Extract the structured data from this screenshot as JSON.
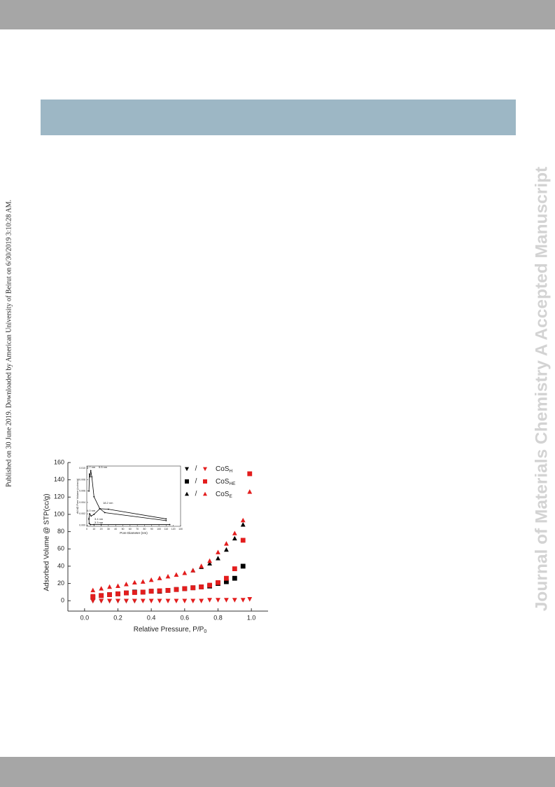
{
  "sidebar_text": "Published on 30 June 2019. Downloaded by American University of Beirut on 6/30/2019 3:10:28 AM.",
  "watermark": "Journal of Materials Chemistry A Accepted Manuscript",
  "chart_data": {
    "type": "scatter",
    "x_label": "Relative Pressure, P/P",
    "x_label_sub": "0",
    "y_label": "Adsorbed Volume @ STP(cc/g)",
    "xlim": [
      -0.1,
      1.1
    ],
    "xticks": [
      {
        "value": 0,
        "label": "0.0"
      },
      {
        "value": 0.2,
        "label": "0.2"
      },
      {
        "value": 0.4,
        "label": "0.4"
      },
      {
        "value": 0.6,
        "label": "0.6"
      },
      {
        "value": 0.8,
        "label": "0.8"
      },
      {
        "value": 1,
        "label": "1.0"
      }
    ],
    "ylim": [
      -12,
      160
    ],
    "yticks": [
      0,
      20,
      40,
      60,
      80,
      100,
      120,
      140,
      160
    ],
    "legend_separator": "/",
    "desorption_color": "#000000",
    "adsorption_color": "#e31d1d",
    "series": [
      {
        "name": "CoS",
        "name_sub": "H",
        "marker": "triangle-down",
        "desorption": {
          "x": [
            0.05,
            0.1,
            0.15,
            0.2,
            0.25,
            0.3
          ],
          "values": [
            0,
            0,
            0,
            0,
            0,
            0
          ]
        },
        "adsorption": {
          "x": [
            0.05,
            0.1,
            0.15,
            0.2,
            0.25,
            0.3,
            0.35,
            0.4,
            0.45,
            0.5,
            0.55,
            0.6,
            0.65,
            0.7,
            0.75,
            0.8,
            0.85,
            0.9,
            0.95,
            0.99
          ],
          "values": [
            0,
            0,
            0,
            0,
            0,
            0,
            0,
            0,
            0,
            0,
            0,
            0,
            0,
            0,
            1,
            1,
            1,
            1,
            1,
            2
          ]
        }
      },
      {
        "name": "CoS",
        "name_sub": "HE",
        "marker": "square",
        "desorption": {
          "x": [
            0.05,
            0.1,
            0.15,
            0.2,
            0.25,
            0.3,
            0.35,
            0.4,
            0.45,
            0.5,
            0.55,
            0.6,
            0.65,
            0.7,
            0.75,
            0.8,
            0.85,
            0.9,
            0.95
          ],
          "values": [
            4,
            6,
            7,
            8,
            9,
            10,
            10,
            11,
            11,
            12,
            13,
            14,
            15,
            16,
            17,
            20,
            22,
            26,
            40
          ]
        },
        "adsorption": {
          "x": [
            0.05,
            0.1,
            0.15,
            0.2,
            0.25,
            0.3,
            0.35,
            0.4,
            0.45,
            0.5,
            0.55,
            0.6,
            0.65,
            0.7,
            0.75,
            0.8,
            0.85,
            0.9,
            0.95,
            0.99
          ],
          "values": [
            5,
            6,
            7,
            8,
            9,
            9.5,
            10,
            11,
            11.5,
            12,
            13,
            14,
            15,
            16,
            18,
            21,
            26,
            37,
            70,
            147
          ]
        }
      },
      {
        "name": "CoS",
        "name_sub": "E",
        "marker": "triangle-up",
        "desorption": {
          "x": [
            0.65,
            0.7,
            0.75,
            0.8,
            0.85,
            0.9,
            0.95
          ],
          "values": [
            35,
            39,
            43,
            49,
            59,
            72,
            88
          ]
        },
        "adsorption": {
          "x": [
            0.05,
            0.1,
            0.15,
            0.2,
            0.25,
            0.3,
            0.35,
            0.4,
            0.45,
            0.5,
            0.55,
            0.6,
            0.65,
            0.7,
            0.75,
            0.8,
            0.85,
            0.9,
            0.95,
            0.99
          ],
          "values": [
            12,
            14,
            16,
            17,
            19,
            21,
            22,
            24,
            26,
            28,
            30,
            32,
            35,
            40,
            46,
            56,
            66,
            78,
            93,
            126
          ]
        }
      }
    ]
  },
  "inset": {
    "type": "line",
    "x_label": "Pore Diameter (nm)",
    "y_label": "dV/dD Pore Volume (cc/nm/g)",
    "xlim": [
      0,
      130
    ],
    "xticks": [
      0,
      10,
      20,
      30,
      40,
      50,
      60,
      70,
      80,
      90,
      100,
      110,
      120,
      130
    ],
    "ylim": [
      -0.0002,
      0.0104
    ],
    "yticks": [
      {
        "value": 0,
        "label": "0.000"
      },
      {
        "value": 0.002,
        "label": "0.002"
      },
      {
        "value": 0.004,
        "label": "0.004"
      },
      {
        "value": 0.006,
        "label": "0.006"
      },
      {
        "value": 0.008,
        "label": "0.008"
      },
      {
        "value": 0.01,
        "label": "0.010"
      }
    ],
    "color": "#000000",
    "series": [
      {
        "x": [
          3,
          3.7,
          4.5,
          5.5,
          7,
          10,
          18,
          30,
          110
        ],
        "values": [
          0.006,
          0.009,
          0.0085,
          0.0096,
          0.0085,
          0.005,
          0.0029,
          0.0028,
          0.0011
        ]
      },
      {
        "x": [
          3,
          4,
          6,
          10,
          18.2,
          25,
          110
        ],
        "values": [
          0.0012,
          0.002,
          0.0016,
          0.0019,
          0.0029,
          0.0022,
          0.0008
        ]
      },
      {
        "x": [
          3,
          3.3,
          5,
          10,
          20,
          115
        ],
        "values": [
          0.001,
          0.0003,
          0.0001,
          0.0001,
          0.0001,
          0.0001
        ]
      }
    ],
    "annotations": [
      "3.7 nm",
      "5.5 nm",
      "18.2 nm",
      "4.0 nm",
      "3.4 nm",
      "3.3 nm"
    ]
  }
}
